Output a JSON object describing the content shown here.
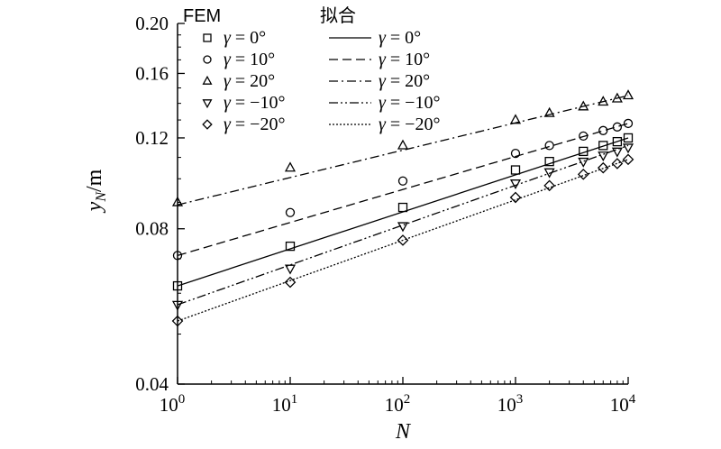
{
  "chart_data": {
    "type": "scatter",
    "x_scale": "log",
    "y_scale": "log",
    "xlim": [
      1,
      10000
    ],
    "ylim": [
      0.04,
      0.2
    ],
    "xlabel": "N",
    "ylabel": "y_N/m",
    "x_ticks": [
      {
        "value": 1,
        "base": "10",
        "exp": "0"
      },
      {
        "value": 10,
        "base": "10",
        "exp": "1"
      },
      {
        "value": 100,
        "base": "10",
        "exp": "2"
      },
      {
        "value": 1000,
        "base": "10",
        "exp": "3"
      },
      {
        "value": 10000,
        "base": "10",
        "exp": "4"
      }
    ],
    "y_ticks": [
      {
        "value": 0.04,
        "label": "0.04"
      },
      {
        "value": 0.08,
        "label": "0.08"
      },
      {
        "value": 0.12,
        "label": "0.12"
      },
      {
        "value": 0.16,
        "label": "0.16"
      },
      {
        "value": 0.2,
        "label": "0.20"
      }
    ],
    "legend": {
      "placement": "top-left",
      "fem_header": "FEM",
      "fit_header": "拟合",
      "gamma_symbol": "γ"
    },
    "series": [
      {
        "name": "γ = 0°",
        "label_value": " = 0°",
        "marker": "square",
        "dash": "",
        "x": [
          1,
          10,
          100,
          1000,
          2000,
          4000,
          6000,
          8000,
          10000
        ],
        "y": [
          0.062,
          0.074,
          0.088,
          0.104,
          0.108,
          0.113,
          0.116,
          0.118,
          0.12
        ],
        "fit": {
          "x": [
            1,
            10000
          ],
          "y": [
            0.062,
            0.12
          ]
        }
      },
      {
        "name": "γ = 10°",
        "label_value": " = 10°",
        "marker": "circle",
        "dash": "10,5",
        "x": [
          1,
          10,
          100,
          1000,
          2000,
          4000,
          6000,
          8000,
          10000
        ],
        "y": [
          0.071,
          0.086,
          0.099,
          0.112,
          0.116,
          0.121,
          0.124,
          0.126,
          0.128
        ],
        "fit": {
          "x": [
            1,
            10000
          ],
          "y": [
            0.071,
            0.128
          ]
        }
      },
      {
        "name": "γ = 20°",
        "label_value": " = 20°",
        "marker": "triangle-up",
        "dash": "10,4,2,4",
        "x": [
          1,
          10,
          100,
          1000,
          2000,
          4000,
          6000,
          8000,
          10000
        ],
        "y": [
          0.09,
          0.105,
          0.116,
          0.13,
          0.134,
          0.138,
          0.141,
          0.143,
          0.145
        ],
        "fit": {
          "x": [
            1,
            10000
          ],
          "y": [
            0.089,
            0.145
          ]
        }
      },
      {
        "name": "γ = −10°",
        "label_value": " = −10°",
        "marker": "triangle-down",
        "dash": "10,3,2,3,2,3",
        "x": [
          1,
          10,
          100,
          1000,
          2000,
          4000,
          6000,
          8000,
          10000
        ],
        "y": [
          0.057,
          0.067,
          0.081,
          0.098,
          0.103,
          0.108,
          0.111,
          0.113,
          0.115
        ],
        "fit": {
          "x": [
            1,
            10000
          ],
          "y": [
            0.057,
            0.116
          ]
        }
      },
      {
        "name": "γ = −20°",
        "label_value": " = −20°",
        "marker": "diamond",
        "dash": "2,2",
        "x": [
          1,
          10,
          100,
          1000,
          2000,
          4000,
          6000,
          8000,
          10000
        ],
        "y": [
          0.053,
          0.063,
          0.076,
          0.092,
          0.097,
          0.102,
          0.105,
          0.107,
          0.109
        ],
        "fit": {
          "x": [
            1,
            10000
          ],
          "y": [
            0.053,
            0.109
          ]
        }
      }
    ]
  }
}
